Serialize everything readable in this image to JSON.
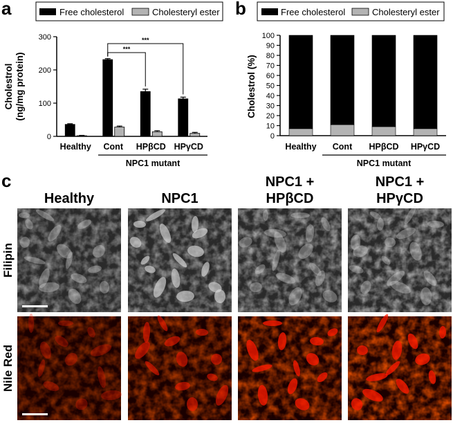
{
  "panels": {
    "a": "a",
    "b": "b",
    "c": "c"
  },
  "legend": {
    "free": "Free cholesterol",
    "ester": "Cholesteryl ester"
  },
  "colors": {
    "free": "#000000",
    "ester": "#b3b3b3",
    "nile_red": "#ff1a00",
    "filipin": "#e6e6e6"
  },
  "group_label": "NPC1 mutant",
  "chart_data": [
    {
      "type": "bar",
      "panel": "a",
      "categories": [
        "Healthy",
        "Cont",
        "HPβCD",
        "HPγCD"
      ],
      "ylabel": "Cholestrol\n(ng/mg protein)",
      "ylim": [
        0,
        300
      ],
      "yticks": [
        0,
        100,
        200,
        300
      ],
      "series": [
        {
          "name": "Free cholesterol",
          "values": [
            36,
            231,
            135,
            113
          ],
          "errors": [
            2,
            3,
            7,
            5
          ]
        },
        {
          "name": "Cholesteryl ester",
          "values": [
            2,
            28,
            14,
            9
          ],
          "errors": [
            1,
            3,
            3,
            3
          ]
        }
      ],
      "significance": [
        {
          "from": "Cont",
          "to": "HPβCD",
          "label": "***"
        },
        {
          "from": "Cont",
          "to": "HPγCD",
          "label": "***"
        }
      ]
    },
    {
      "type": "bar",
      "stacked": true,
      "panel": "b",
      "categories": [
        "Healthy",
        "Cont",
        "HPβCD",
        "HPγCD"
      ],
      "ylabel": "Cholestrol (%)",
      "ylim": [
        0,
        100
      ],
      "yticks": [
        0,
        10,
        20,
        30,
        40,
        50,
        60,
        70,
        80,
        90,
        100
      ],
      "series": [
        {
          "name": "Cholesteryl ester",
          "values": [
            7,
            11,
            9,
            7
          ]
        },
        {
          "name": "Free cholesterol",
          "values": [
            93,
            89,
            91,
            93
          ]
        }
      ]
    }
  ],
  "micrographs": {
    "columns": [
      "Healthy",
      "NPC1",
      "NPC1 +\nHPβCD",
      "NPC1 +\nHPγCD"
    ],
    "rows": [
      "Filipin",
      "Nile Red"
    ]
  }
}
